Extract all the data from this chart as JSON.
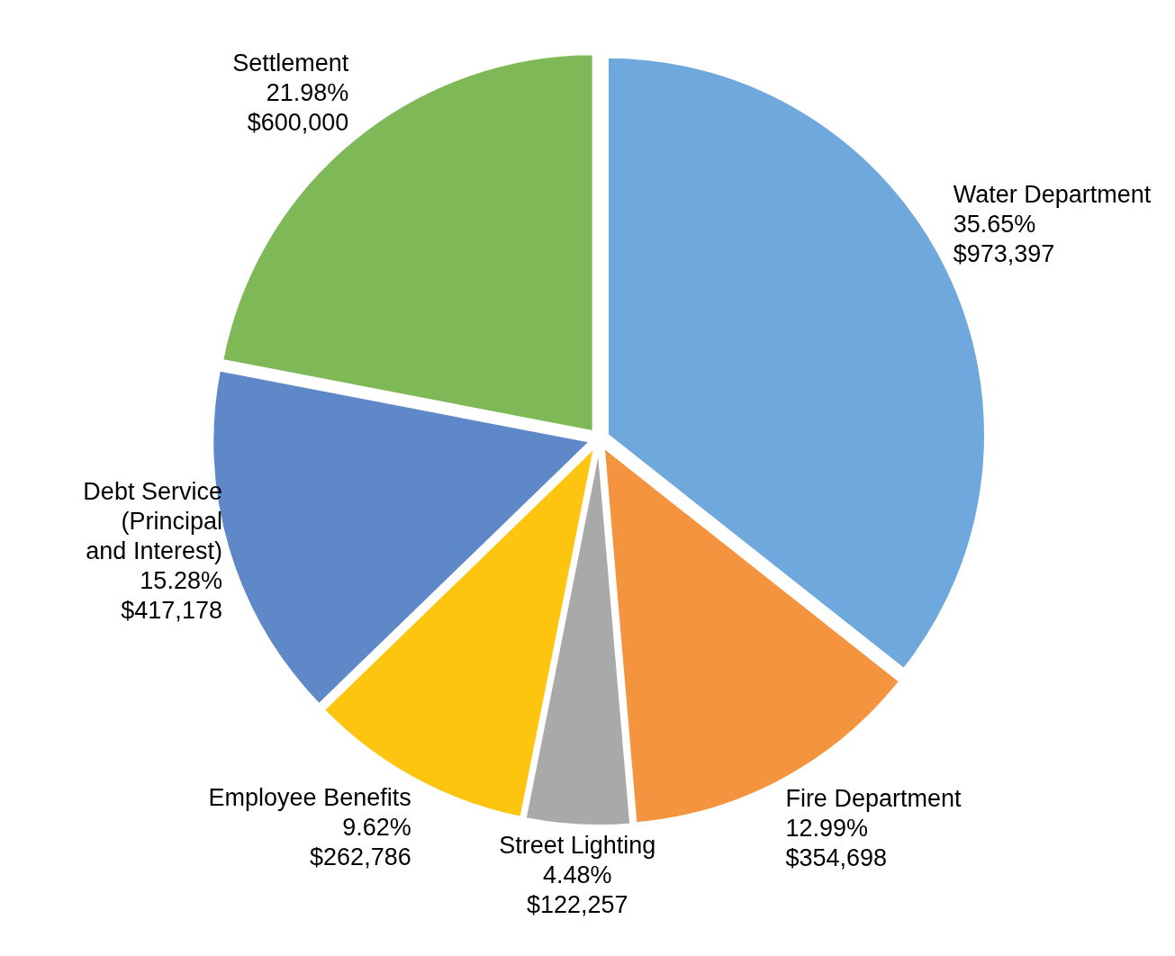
{
  "chart_data": {
    "type": "pie",
    "categories": [
      "Water Department",
      "Fire Department",
      "Street Lighting",
      "Employee Benefits",
      "Debt Service\n(Principal\nand Interest)",
      "Settlement"
    ],
    "values": [
      973397,
      354698,
      122257,
      262786,
      417178,
      600000
    ],
    "colors": [
      "#6fa8dc",
      "#f4943f",
      "#a9a9a9",
      "#fdc510",
      "#5f88c8",
      "#7fb857"
    ],
    "value_labels": [
      "35.65%\n$973,397",
      "12.99%\n$354,698",
      "4.48%\n$122,257",
      "9.62%\n$262,786",
      "15.28%\n$417,178",
      "21.98%\n$600,000"
    ],
    "legend": false
  }
}
